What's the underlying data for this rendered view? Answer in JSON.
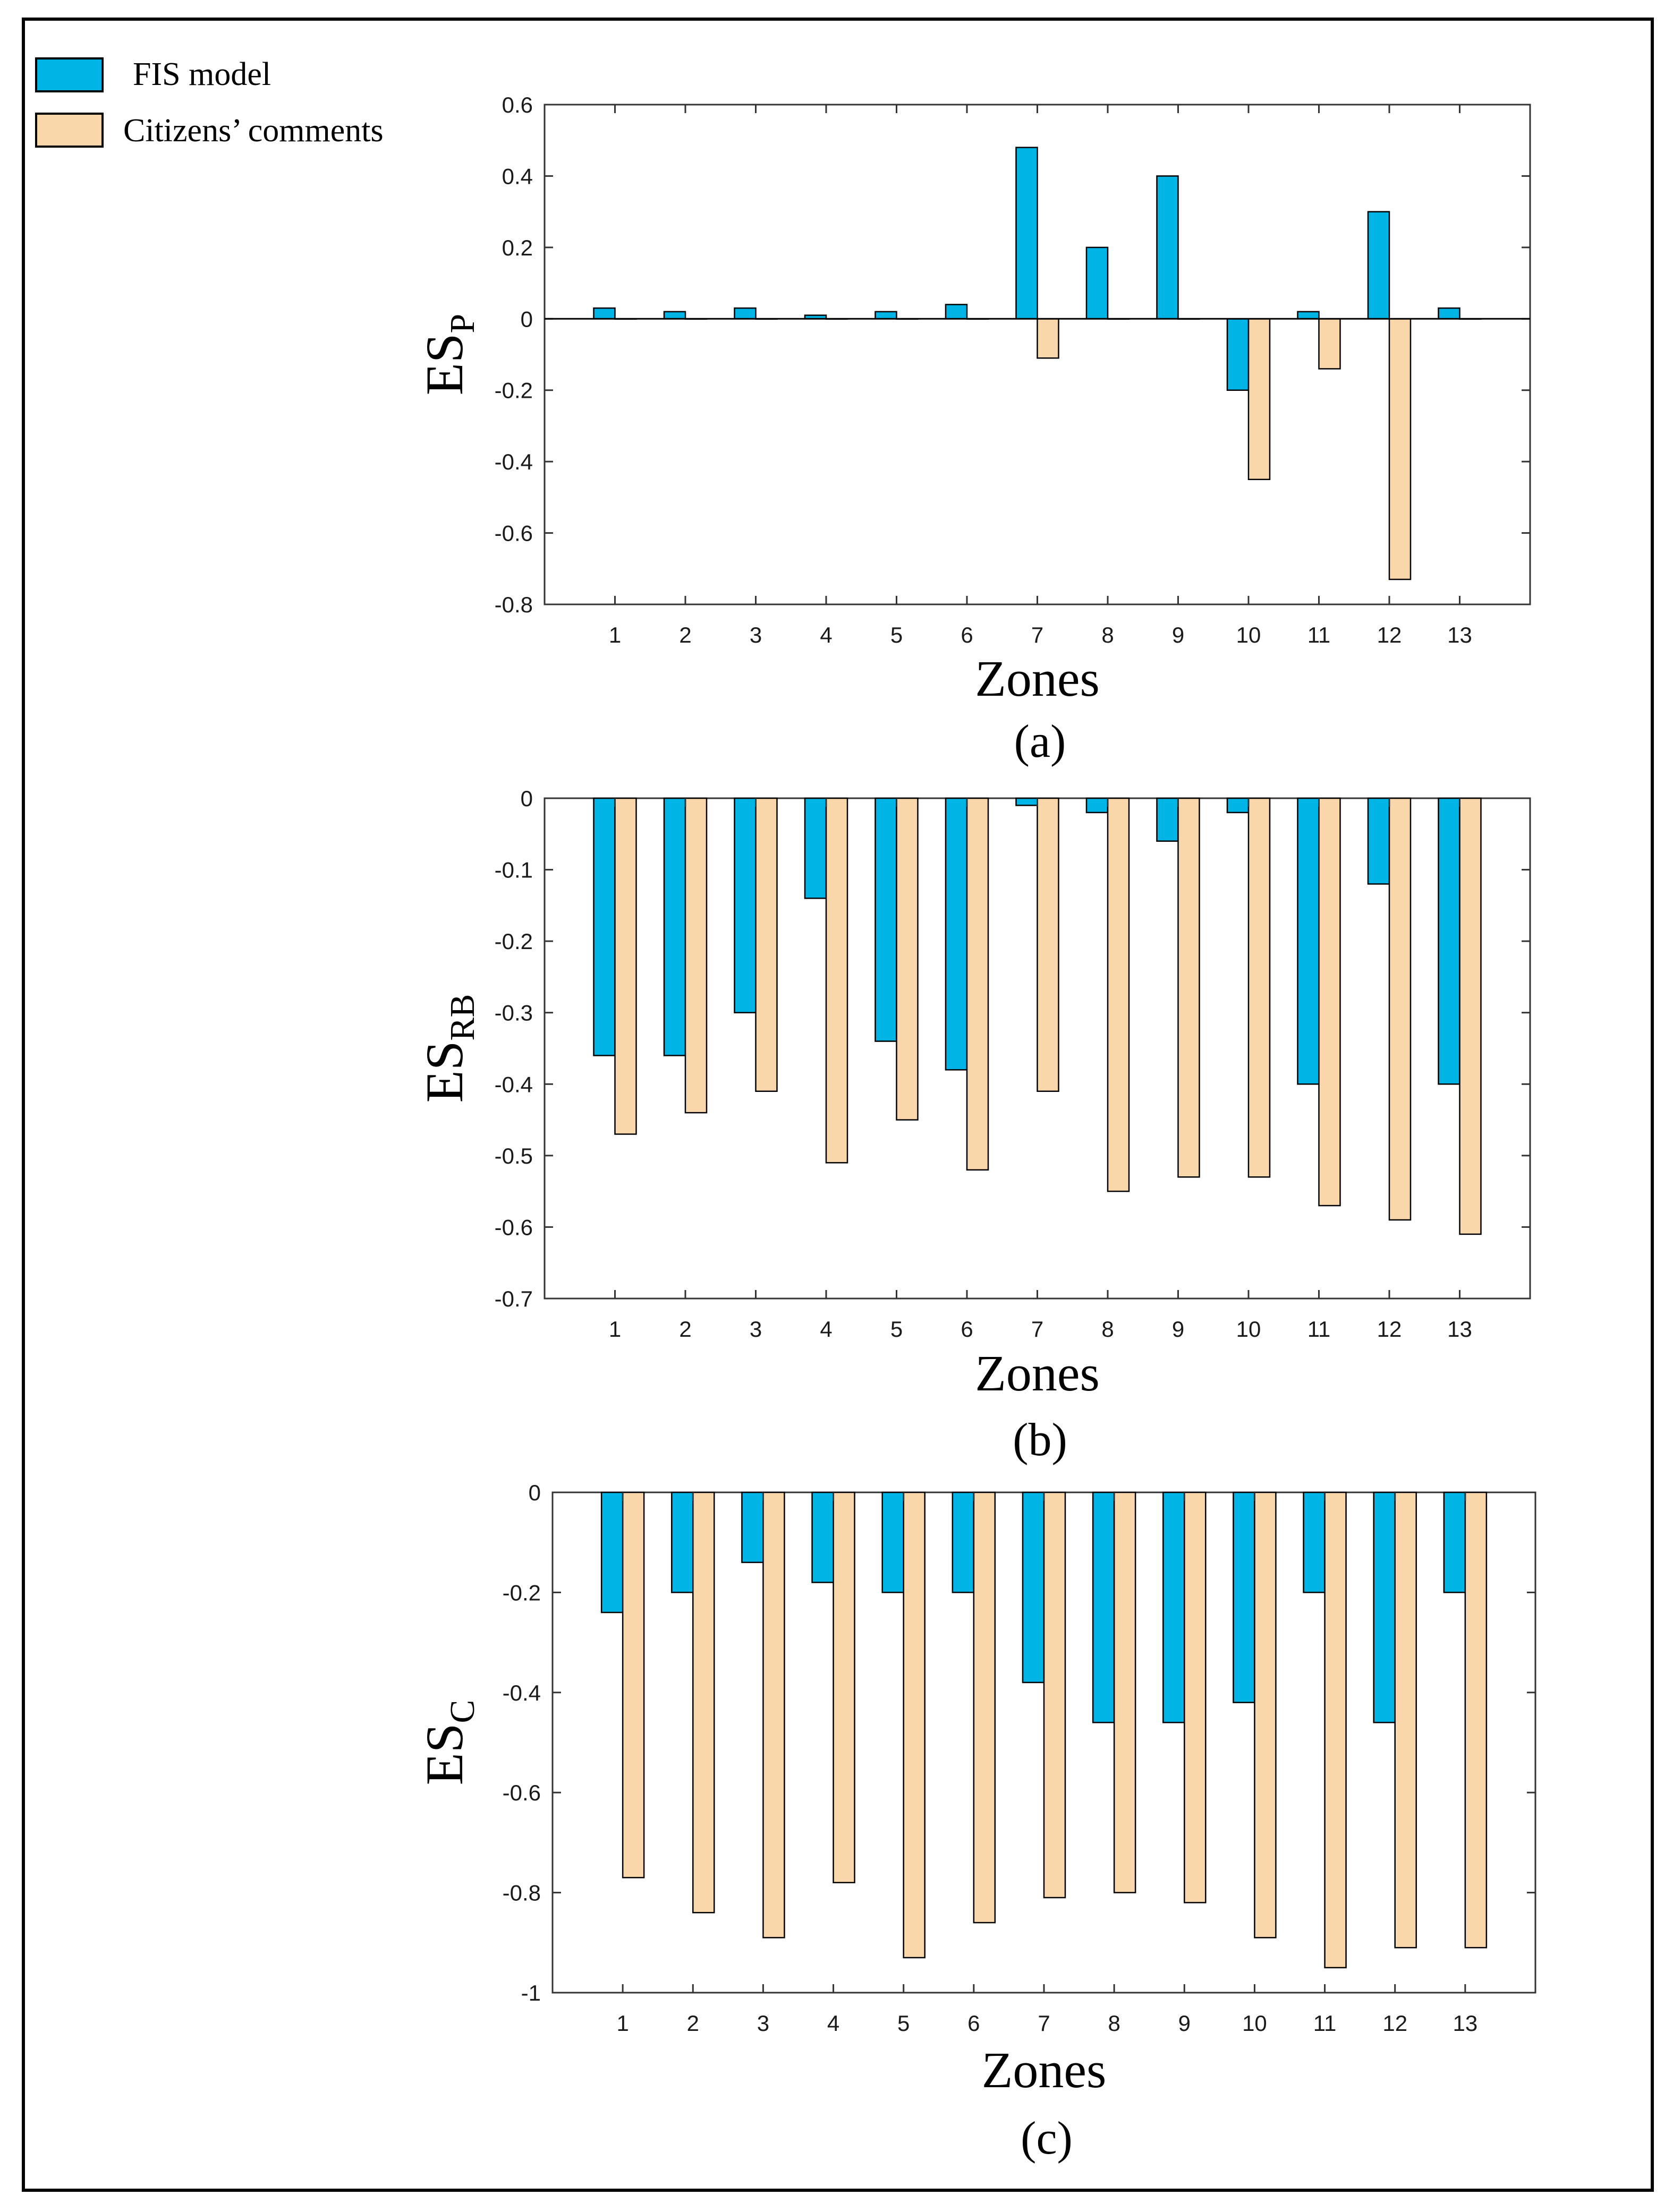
{
  "legend": {
    "items": [
      {
        "label": "FIS model",
        "color": "#00B4E6"
      },
      {
        "label": "Citizens’ comments",
        "color": "#FAD7AA"
      }
    ]
  },
  "chart_data": [
    {
      "type": "bar",
      "title": "",
      "panel_label": "(a)",
      "xlabel": "Zones",
      "ylabel": {
        "main": "ES",
        "sub": "P"
      },
      "categories": [
        "1",
        "2",
        "3",
        "4",
        "5",
        "6",
        "7",
        "8",
        "9",
        "10",
        "11",
        "12",
        "13"
      ],
      "ylim": [
        -0.8,
        0.6
      ],
      "yticks": [
        "-0.8",
        "-0.6",
        "-0.4",
        "-0.2",
        "0",
        "0.2",
        "0.4",
        "0.6"
      ],
      "ytick_values": [
        -0.8,
        -0.6,
        -0.4,
        -0.2,
        0,
        0.2,
        0.4,
        0.6
      ],
      "series": [
        {
          "name": "FIS model",
          "values": [
            0.03,
            0.02,
            0.03,
            0.01,
            0.02,
            0.04,
            0.48,
            0.2,
            0.4,
            -0.2,
            0.02,
            0.3,
            0.03
          ]
        },
        {
          "name": "Citizens’ comments",
          "values": [
            0,
            0,
            0,
            0,
            0,
            0,
            -0.11,
            0,
            0,
            -0.45,
            -0.14,
            -0.73,
            0
          ]
        }
      ]
    },
    {
      "type": "bar",
      "title": "",
      "panel_label": "(b)",
      "xlabel": "Zones",
      "ylabel": {
        "main": "ES",
        "sub": "RB"
      },
      "categories": [
        "1",
        "2",
        "3",
        "4",
        "5",
        "6",
        "7",
        "8",
        "9",
        "10",
        "11",
        "12",
        "13"
      ],
      "ylim": [
        -0.7,
        0
      ],
      "yticks": [
        "-0.7",
        "-0.6",
        "-0.5",
        "-0.4",
        "-0.3",
        "-0.2",
        "-0.1",
        "0"
      ],
      "ytick_values": [
        -0.7,
        -0.6,
        -0.5,
        -0.4,
        -0.3,
        -0.2,
        -0.1,
        0
      ],
      "series": [
        {
          "name": "FIS model",
          "values": [
            -0.36,
            -0.36,
            -0.3,
            -0.14,
            -0.34,
            -0.38,
            -0.01,
            -0.02,
            -0.06,
            -0.02,
            -0.4,
            -0.12,
            -0.4
          ]
        },
        {
          "name": "Citizens’ comments",
          "values": [
            -0.47,
            -0.44,
            -0.41,
            -0.51,
            -0.45,
            -0.52,
            -0.41,
            -0.55,
            -0.53,
            -0.53,
            -0.57,
            -0.59,
            -0.61
          ]
        }
      ]
    },
    {
      "type": "bar",
      "title": "",
      "panel_label": "(c)",
      "xlabel": "Zones",
      "ylabel": {
        "main": "ES",
        "sub": "C"
      },
      "categories": [
        "1",
        "2",
        "3",
        "4",
        "5",
        "6",
        "7",
        "8",
        "9",
        "10",
        "11",
        "12",
        "13"
      ],
      "ylim": [
        -1,
        0
      ],
      "yticks": [
        "-1",
        "-0.8",
        "-0.6",
        "-0.4",
        "-0.2",
        "0"
      ],
      "ytick_values": [
        -1,
        -0.8,
        -0.6,
        -0.4,
        -0.2,
        0
      ],
      "series": [
        {
          "name": "FIS model",
          "values": [
            -0.24,
            -0.2,
            -0.14,
            -0.18,
            -0.2,
            -0.2,
            -0.38,
            -0.46,
            -0.46,
            -0.42,
            -0.2,
            -0.46,
            -0.2
          ]
        },
        {
          "name": "Citizens’ comments",
          "values": [
            -0.77,
            -0.84,
            -0.89,
            -0.78,
            -0.93,
            -0.86,
            -0.81,
            -0.8,
            -0.82,
            -0.89,
            -0.95,
            -0.91,
            -0.91
          ]
        }
      ]
    }
  ]
}
